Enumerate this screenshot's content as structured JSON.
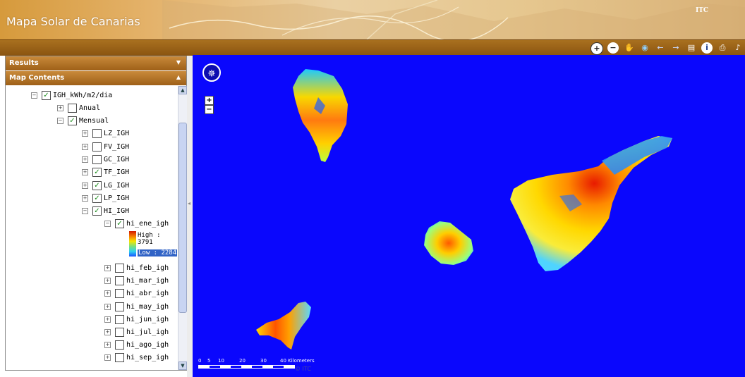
{
  "header": {
    "title": "Mapa Solar de Canarias",
    "org": "ITC"
  },
  "toolbar": {
    "tools": [
      {
        "name": "zoom-in-icon",
        "glyph": "+"
      },
      {
        "name": "zoom-out-icon",
        "glyph": "−"
      },
      {
        "name": "pan-hand-icon",
        "glyph": "✋"
      },
      {
        "name": "full-extent-icon",
        "glyph": "◉"
      },
      {
        "name": "previous-extent-icon",
        "glyph": "←"
      },
      {
        "name": "next-extent-icon",
        "glyph": "→"
      },
      {
        "name": "table-icon",
        "glyph": "▤"
      },
      {
        "name": "info-icon",
        "glyph": "i"
      },
      {
        "name": "print-icon",
        "glyph": "⎙"
      },
      {
        "name": "measure-icon",
        "glyph": "♪"
      }
    ]
  },
  "panels": {
    "results": {
      "title": "Results"
    },
    "map_contents": {
      "title": "Map Contents"
    }
  },
  "tree": {
    "root": {
      "label": "IGH_kWh/m2/dia",
      "checked": true
    },
    "anual": {
      "label": "Anual",
      "checked": false
    },
    "mensual": {
      "label": "Mensual",
      "checked": true
    },
    "islands": [
      {
        "label": "LZ_IGH",
        "checked": false
      },
      {
        "label": "FV_IGH",
        "checked": false
      },
      {
        "label": "GC_IGH",
        "checked": false
      },
      {
        "label": "TF_IGH",
        "checked": true
      },
      {
        "label": "LG_IGH",
        "checked": true
      },
      {
        "label": "LP_IGH",
        "checked": true
      },
      {
        "label": "HI_IGH",
        "checked": true
      }
    ],
    "hi_ene": {
      "label": "hi_ene_igh",
      "checked": true
    },
    "legend": {
      "high": "High : 3791",
      "low": "Low : 2284"
    },
    "months": [
      {
        "label": "hi_feb_igh",
        "checked": false
      },
      {
        "label": "hi_mar_igh",
        "checked": false
      },
      {
        "label": "hi_abr_igh",
        "checked": false
      },
      {
        "label": "hi_may_igh",
        "checked": false
      },
      {
        "label": "hi_jun_igh",
        "checked": false
      },
      {
        "label": "hi_jul_igh",
        "checked": false
      },
      {
        "label": "hi_ago_igh",
        "checked": false
      },
      {
        "label": "hi_sep_igh",
        "checked": false
      }
    ]
  },
  "map": {
    "background": "#0a07fd",
    "zoom_in": "+",
    "zoom_out": "−",
    "scale": {
      "ticks": [
        "0",
        "5",
        "10",
        "20",
        "30"
      ],
      "end_label": "40 Kilometers"
    },
    "copyright": "© ITC"
  }
}
